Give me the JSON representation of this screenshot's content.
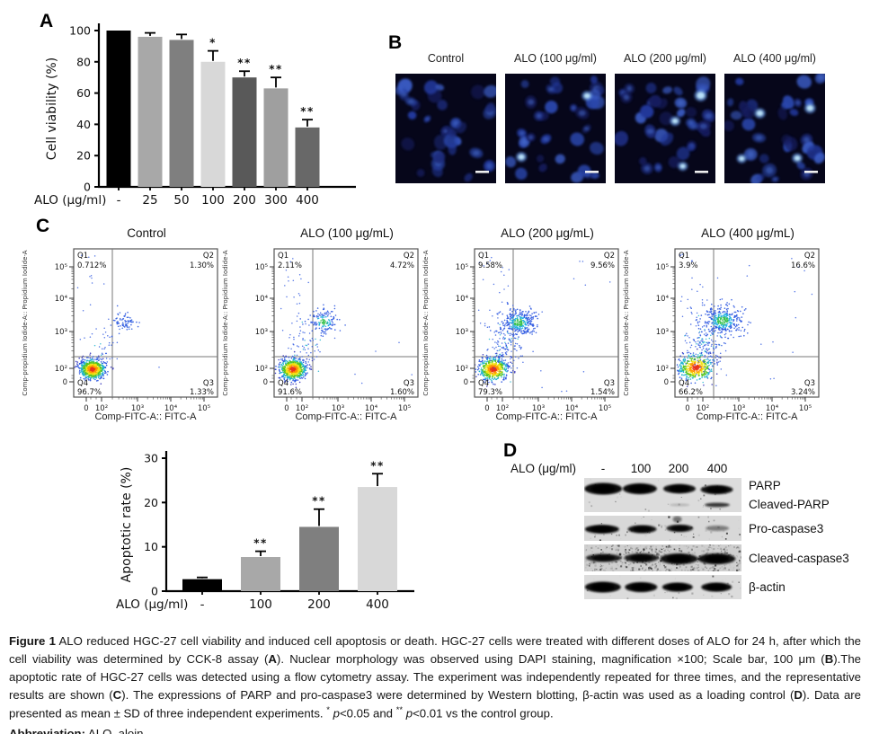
{
  "panel_labels": {
    "A": "A",
    "B": "B",
    "C": "C",
    "D": "D"
  },
  "chart_data": [
    {
      "id": "cell-viability",
      "type": "bar",
      "title": "",
      "ylabel": "Cell viability (%)",
      "xlabel_prefix": "ALO (μg/ml)",
      "categories": [
        "-",
        "25",
        "50",
        "100",
        "200",
        "300",
        "400"
      ],
      "values": [
        100,
        96,
        94,
        80,
        70,
        63,
        38
      ],
      "errors": [
        0,
        2.5,
        3.5,
        7,
        4,
        7,
        5
      ],
      "significance": [
        "",
        "",
        "",
        "*",
        "**",
        "**",
        "**"
      ],
      "bar_colors": [
        "#000000",
        "#a8a8a8",
        "#7f7f7f",
        "#d8d8d8",
        "#595959",
        "#9f9f9f",
        "#686868"
      ],
      "ylim": [
        0,
        100
      ],
      "yticks": [
        0,
        20,
        40,
        60,
        80,
        100
      ],
      "grid": false,
      "legend": "none"
    },
    {
      "id": "apoptotic-rate",
      "type": "bar",
      "title": "",
      "ylabel": "Apoptotic rate (%)",
      "xlabel_prefix": "ALO (μg/ml)",
      "categories": [
        "-",
        "100",
        "200",
        "400"
      ],
      "values": [
        2.7,
        7.7,
        14.5,
        23.5
      ],
      "errors": [
        0.4,
        1.3,
        4,
        3
      ],
      "significance": [
        "",
        "**",
        "**",
        "**"
      ],
      "bar_colors": [
        "#000000",
        "#a8a8a8",
        "#7f7f7f",
        "#d8d8d8"
      ],
      "ylim": [
        0,
        30
      ],
      "yticks": [
        0,
        10,
        20,
        30
      ],
      "grid": false,
      "legend": "none"
    },
    {
      "id": "flow-cytometry",
      "type": "scatter",
      "xlabel": "Comp-FITC-A:: FITC-A",
      "ylabel": "Comp-propidium Iodide-A:: Propidium Iodide-A",
      "xticks": [
        "0",
        "10²",
        "10³",
        "10⁴",
        "10⁵"
      ],
      "yticks": [
        "0",
        "10²",
        "10³",
        "10⁴",
        "10⁵"
      ],
      "quadrant_names": [
        "Q1",
        "Q2",
        "Q3",
        "Q4"
      ],
      "plots": [
        {
          "title": "Control",
          "Q1": "0.712%",
          "Q2": "1.30%",
          "Q3": "1.33%",
          "Q4": "96.7%"
        },
        {
          "title": "ALO (100 μg/mL)",
          "Q1": "2.11%",
          "Q2": "4.72%",
          "Q3": "1.60%",
          "Q4": "91.6%"
        },
        {
          "title": "ALO (200 μg/mL)",
          "Q1": "9.58%",
          "Q2": "9.56%",
          "Q3": "1.54%",
          "Q4": "79.3%"
        },
        {
          "title": "ALO (400 μg/mL)",
          "Q1": "3.9%",
          "Q2": "16.6%",
          "Q3": "3.24%",
          "Q4": "66.2%"
        }
      ]
    }
  ],
  "panel_b": {
    "titles": [
      "Control",
      "ALO (100 μg/ml)",
      "ALO (200 μg/ml)",
      "ALO (400 μg/ml)"
    ],
    "image_style": "DAPI-stained nuclei, dark blue field",
    "scale_bar": "white bar, bottom right of each image"
  },
  "panel_d": {
    "header_label": "ALO (μg/ml)",
    "doses": [
      "-",
      "100",
      "200",
      "400"
    ],
    "rows": [
      {
        "labels": [
          "PARP",
          "Cleaved-PARP"
        ]
      },
      {
        "labels": [
          "Pro-caspase3"
        ]
      },
      {
        "labels": [
          "Cleaved-caspase3"
        ]
      },
      {
        "labels": [
          "β-actin"
        ]
      }
    ]
  },
  "caption": {
    "line1": [
      {
        "t": "Figure 1",
        "b": true
      },
      {
        "t": " ALO reduced HGC-27 cell viability and induced cell apoptosis or death. HGC-27 cells were treated with different doses of ALO for 24 h, after which the cell viability was determined by CCK-8 assay ("
      },
      {
        "t": "A",
        "b": true
      },
      {
        "t": "). Nuclear morphology was observed using DAPI staining, magnification ×100; Scale bar, 100 μm ("
      },
      {
        "t": "B",
        "b": true
      },
      {
        "t": ").The apoptotic rate of HGC-27 cells was detected using a flow cytometry assay. The experiment was independently repeated for three times, and the representative results are shown ("
      },
      {
        "t": "C",
        "b": true
      },
      {
        "t": "). The expressions of PARP and pro-caspase3 were determined by Western blotting, β-actin was used as a loading control ("
      },
      {
        "t": "D",
        "b": true
      },
      {
        "t": "). Data are presented as mean ± SD of three independent experiments. "
      },
      {
        "t": "*",
        "sup": true
      },
      {
        "t": " "
      },
      {
        "t": "p",
        "i": true
      },
      {
        "t": "<0.05 and "
      },
      {
        "t": "**",
        "sup": true
      },
      {
        "t": " "
      },
      {
        "t": "p",
        "i": true
      },
      {
        "t": "<0.01 vs the control group."
      }
    ],
    "line2": [
      {
        "t": "Abbreviation:",
        "b": true
      },
      {
        "t": " ALO, aloin."
      }
    ]
  }
}
